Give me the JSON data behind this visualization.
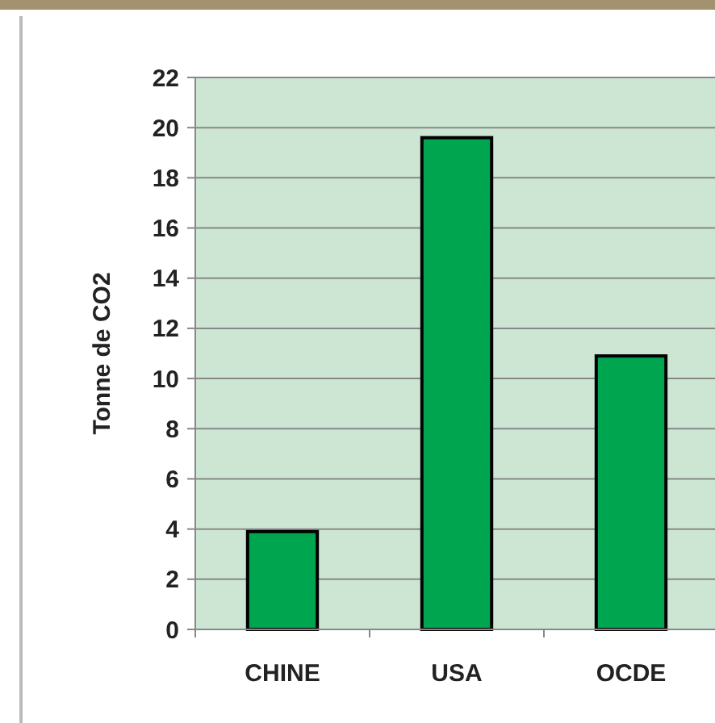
{
  "chart_data": {
    "type": "bar",
    "ylabel": "Tonne de CO2",
    "categories": [
      "CHINE",
      "USA",
      "OCDE"
    ],
    "values": [
      3.9,
      19.6,
      10.9
    ],
    "color": "#00a550",
    "ylim": [
      0,
      22
    ],
    "yticks": [
      0,
      2,
      4,
      6,
      8,
      10,
      12,
      14,
      16,
      18,
      20,
      22
    ],
    "grid": "y"
  }
}
